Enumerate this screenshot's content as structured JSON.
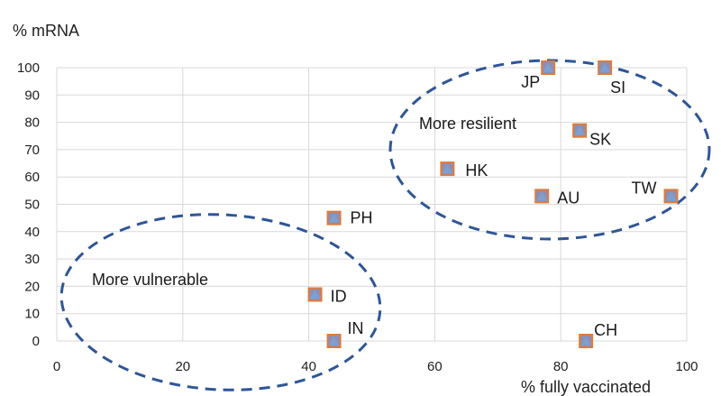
{
  "chart_data": {
    "type": "scatter",
    "title": "",
    "xlabel": "% fully vaccinated",
    "ylabel": "% mRNA",
    "xlim": [
      0,
      100
    ],
    "ylim": [
      0,
      100
    ],
    "x_ticks": [
      0,
      20,
      40,
      60,
      80,
      100
    ],
    "y_ticks": [
      0,
      10,
      20,
      30,
      40,
      50,
      60,
      70,
      80,
      90,
      100
    ],
    "grid": true,
    "colors": {
      "marker_fill": "#8c8fb5",
      "marker_border": "#e07b39",
      "marker_inner": "#7f9fcf",
      "ellipse": "#2f5597"
    },
    "points": [
      {
        "label": "JP",
        "x": 78,
        "y": 100
      },
      {
        "label": "SI",
        "x": 87,
        "y": 100
      },
      {
        "label": "SK",
        "x": 83,
        "y": 77
      },
      {
        "label": "HK",
        "x": 62,
        "y": 63
      },
      {
        "label": "AU",
        "x": 77,
        "y": 53
      },
      {
        "label": "TW",
        "x": 97.5,
        "y": 53
      },
      {
        "label": "PH",
        "x": 44,
        "y": 45
      },
      {
        "label": "ID",
        "x": 41,
        "y": 17
      },
      {
        "label": "IN",
        "x": 44,
        "y": 0
      },
      {
        "label": "CH",
        "x": 84,
        "y": 0
      }
    ],
    "annotations": [
      {
        "text": "More resilient",
        "group": "resilient"
      },
      {
        "text": "More vulnerable",
        "group": "vulnerable"
      }
    ]
  }
}
